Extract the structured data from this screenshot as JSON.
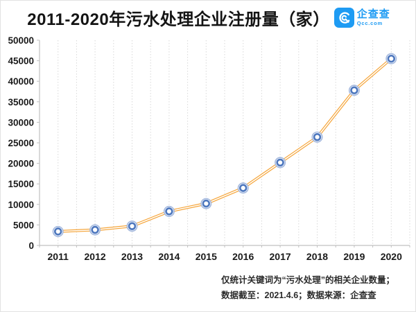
{
  "header": {
    "title": "2011-2020年污水处理企业注册量（家）",
    "logo": {
      "name": "企查查",
      "domain": "Qcc.com",
      "brand_color": "#1e9bf3"
    }
  },
  "chart_data": {
    "type": "line",
    "title": "2011-2020年污水处理企业注册量（家）",
    "categories": [
      "2011",
      "2012",
      "2013",
      "2014",
      "2015",
      "2016",
      "2017",
      "2018",
      "2019",
      "2020"
    ],
    "series": [
      {
        "name": "污水处理企业注册量",
        "values": [
          3400,
          3800,
          4700,
          8300,
          10200,
          14000,
          20200,
          26400,
          37800,
          45500
        ]
      }
    ],
    "xlabel": "",
    "ylabel": "",
    "ylim": [
      0,
      50000
    ],
    "ytick_step": 5000,
    "grid": "vertical-dotted-halfstep",
    "legend": "none",
    "line_color": "#f5a53a",
    "marker_color": "#4d77be",
    "marker_halo_color": "#a3b8de",
    "axis_color": "#c0c0c0",
    "grid_color": "#d8d8d8"
  },
  "footer": {
    "note_line1": "仅统计关键词为“污水处理”的相关企业数量；",
    "note_line2": "数据截至：2021.4.6；数据来源：企查查"
  }
}
